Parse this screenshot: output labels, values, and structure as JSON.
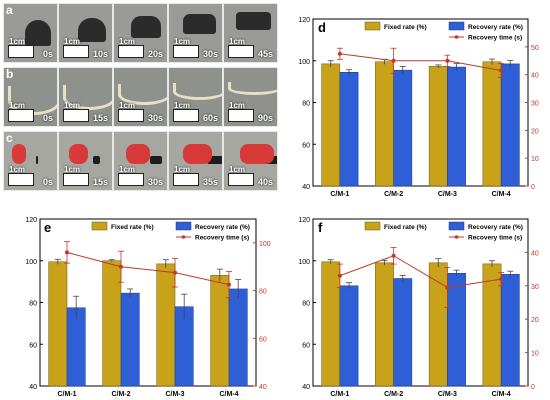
{
  "photos": {
    "rows": [
      {
        "letter": "a",
        "scale": "1cm",
        "times": [
          "0s",
          "10s",
          "20s",
          "30s",
          "45s"
        ],
        "bg": "#9a9a98",
        "sample": "#2b2b2b"
      },
      {
        "letter": "b",
        "scale": "1cm",
        "times": [
          "0s",
          "15s",
          "30s",
          "60s",
          "90s"
        ],
        "bg": "#8f918c",
        "sample": "#e6e0c6"
      },
      {
        "letter": "c",
        "scale": "1cm",
        "times": [
          "0s",
          "15s",
          "30s",
          "35s",
          "40s"
        ],
        "bg": "#a7a7a2",
        "sample": "#d83a3a"
      }
    ]
  },
  "legend": {
    "fixed": "Fixed rate (%)",
    "recovery": "Recovery rate (%)",
    "time": "Recovery time (s)"
  },
  "colors": {
    "fixed": "#c8a219",
    "recovery": "#2e5fd6",
    "time": "#c0392b",
    "right_axis": "#c0392b"
  },
  "chart_data": [
    {
      "panel": "d",
      "type": "bar",
      "categories": [
        "C/M-1",
        "C/M-2",
        "C/M-3",
        "C/M-4"
      ],
      "series": [
        {
          "name": "Fixed rate (%)",
          "values": [
            98.5,
            99.5,
            97.3,
            99.5
          ],
          "errors": [
            1.5,
            1.2,
            0.7,
            1.3
          ]
        },
        {
          "name": "Recovery rate (%)",
          "values": [
            94.5,
            95.5,
            97.0,
            98.5
          ],
          "errors": [
            1.2,
            1.8,
            1.6,
            1.6
          ]
        },
        {
          "name": "Recovery time (s)",
          "values": [
            47.5,
            45.0,
            45.0,
            41.5
          ],
          "errors": [
            2.0,
            4.5,
            2.0,
            2.5
          ],
          "axis": "right"
        }
      ],
      "ylim": [
        40,
        120
      ],
      "yticks": [
        40,
        60,
        80,
        100,
        120
      ],
      "y2lim": [
        0,
        60
      ],
      "y2ticks": [
        0,
        10,
        20,
        30,
        40,
        50
      ]
    },
    {
      "panel": "e",
      "type": "bar",
      "categories": [
        "C/M-1",
        "C/M-2",
        "C/M-3",
        "C/M-4"
      ],
      "series": [
        {
          "name": "Fixed rate (%)",
          "values": [
            99.5,
            100.0,
            98.5,
            93.0
          ],
          "errors": [
            1.2,
            0.5,
            2.0,
            3.0
          ]
        },
        {
          "name": "Recovery rate (%)",
          "values": [
            77.5,
            84.5,
            78.0,
            86.5
          ],
          "errors": [
            5.5,
            2.0,
            6.0,
            4.5
          ]
        },
        {
          "name": "Recovery time (s)",
          "values": [
            96.0,
            90.0,
            87.5,
            82.5
          ],
          "errors": [
            4.5,
            6.5,
            6.0,
            5.5
          ],
          "axis": "right"
        }
      ],
      "ylim": [
        40,
        120
      ],
      "yticks": [
        40,
        60,
        80,
        100,
        120
      ],
      "y2lim": [
        40,
        110
      ],
      "y2ticks": [
        40,
        60,
        80,
        100
      ]
    },
    {
      "panel": "f",
      "type": "bar",
      "categories": [
        "C/M-1",
        "C/M-2",
        "C/M-3",
        "C/M-4"
      ],
      "series": [
        {
          "name": "Fixed rate (%)",
          "values": [
            99.5,
            99.0,
            99.0,
            98.5
          ],
          "errors": [
            1.0,
            1.2,
            2.0,
            1.5
          ]
        },
        {
          "name": "Recovery rate (%)",
          "values": [
            88.0,
            91.5,
            94.0,
            93.5
          ],
          "errors": [
            1.5,
            1.5,
            1.5,
            1.5
          ]
        },
        {
          "name": "Recovery time (s)",
          "values": [
            33.0,
            39.0,
            29.5,
            32.0
          ],
          "errors": [
            3.5,
            2.5,
            6.0,
            2.0
          ],
          "axis": "right"
        }
      ],
      "ylim": [
        40,
        120
      ],
      "yticks": [
        40,
        60,
        80,
        100,
        120
      ],
      "y2lim": [
        0,
        50
      ],
      "y2ticks": [
        0,
        10,
        20,
        30,
        40
      ]
    }
  ]
}
